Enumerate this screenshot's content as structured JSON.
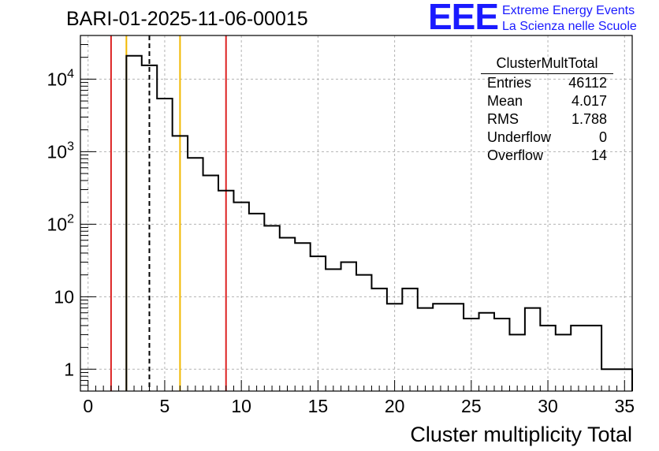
{
  "page_title": "BARI-01-2025-11-06-00015",
  "logo": {
    "mark": "EEE",
    "line1": "Extreme Energy Events",
    "line2": "La Scienza nelle Scuole",
    "color": "#1a1aff"
  },
  "stats": {
    "title": "ClusterMultTotal",
    "rows": [
      {
        "label": "Entries",
        "value": "46112"
      },
      {
        "label": "Mean",
        "value": "4.017"
      },
      {
        "label": "RMS",
        "value": "1.788"
      },
      {
        "label": "Underflow",
        "value": "0"
      },
      {
        "label": "Overflow",
        "value": "14"
      }
    ]
  },
  "chart_data": {
    "type": "histogram",
    "title": "BARI-01-2025-11-06-00015",
    "xlabel": "Cluster multiplicity Total",
    "ylabel": "",
    "xlim": [
      -0.5,
      35.5
    ],
    "ylim": [
      0.5,
      40000
    ],
    "yscale": "log",
    "grid": true,
    "x_ticks": [
      0,
      5,
      10,
      15,
      20,
      25,
      30,
      35
    ],
    "y_ticks": [
      {
        "value": 1,
        "base": "1",
        "exp": ""
      },
      {
        "value": 10,
        "base": "10",
        "exp": ""
      },
      {
        "value": 100,
        "base": "10",
        "exp": "2"
      },
      {
        "value": 1000,
        "base": "10",
        "exp": "3"
      },
      {
        "value": 10000,
        "base": "10",
        "exp": "4"
      }
    ],
    "bin_width": 1,
    "bins": [
      {
        "x_low": 2.5,
        "count": 21000
      },
      {
        "x_low": 3.5,
        "count": 15500
      },
      {
        "x_low": 4.5,
        "count": 5400
      },
      {
        "x_low": 5.5,
        "count": 1650
      },
      {
        "x_low": 6.5,
        "count": 820
      },
      {
        "x_low": 7.5,
        "count": 470
      },
      {
        "x_low": 8.5,
        "count": 290
      },
      {
        "x_low": 9.5,
        "count": 200
      },
      {
        "x_low": 10.5,
        "count": 140
      },
      {
        "x_low": 11.5,
        "count": 95
      },
      {
        "x_low": 12.5,
        "count": 65
      },
      {
        "x_low": 13.5,
        "count": 55
      },
      {
        "x_low": 14.5,
        "count": 36
      },
      {
        "x_low": 15.5,
        "count": 24
      },
      {
        "x_low": 16.5,
        "count": 30
      },
      {
        "x_low": 17.5,
        "count": 20
      },
      {
        "x_low": 18.5,
        "count": 13
      },
      {
        "x_low": 19.5,
        "count": 8
      },
      {
        "x_low": 20.5,
        "count": 13
      },
      {
        "x_low": 21.5,
        "count": 7
      },
      {
        "x_low": 22.5,
        "count": 8
      },
      {
        "x_low": 23.5,
        "count": 8
      },
      {
        "x_low": 24.5,
        "count": 5
      },
      {
        "x_low": 25.5,
        "count": 6
      },
      {
        "x_low": 26.5,
        "count": 5
      },
      {
        "x_low": 27.5,
        "count": 3
      },
      {
        "x_low": 28.5,
        "count": 7
      },
      {
        "x_low": 29.5,
        "count": 4
      },
      {
        "x_low": 30.5,
        "count": 3
      },
      {
        "x_low": 31.5,
        "count": 4
      },
      {
        "x_low": 32.5,
        "count": 4
      },
      {
        "x_low": 33.5,
        "count": 1
      },
      {
        "x_low": 34.5,
        "count": 1
      }
    ],
    "reference_lines": [
      {
        "name": "red-line-low",
        "x": 1.5,
        "color": "#dd2222",
        "style": "solid"
      },
      {
        "name": "yellow-line-low",
        "x": 2.5,
        "color": "#f2b800",
        "style": "solid"
      },
      {
        "name": "mean-line",
        "x": 4.0,
        "color": "#000000",
        "style": "dashed"
      },
      {
        "name": "yellow-line-high",
        "x": 6.0,
        "color": "#f2b800",
        "style": "solid"
      },
      {
        "name": "red-line-high",
        "x": 9.0,
        "color": "#dd2222",
        "style": "solid"
      }
    ]
  }
}
